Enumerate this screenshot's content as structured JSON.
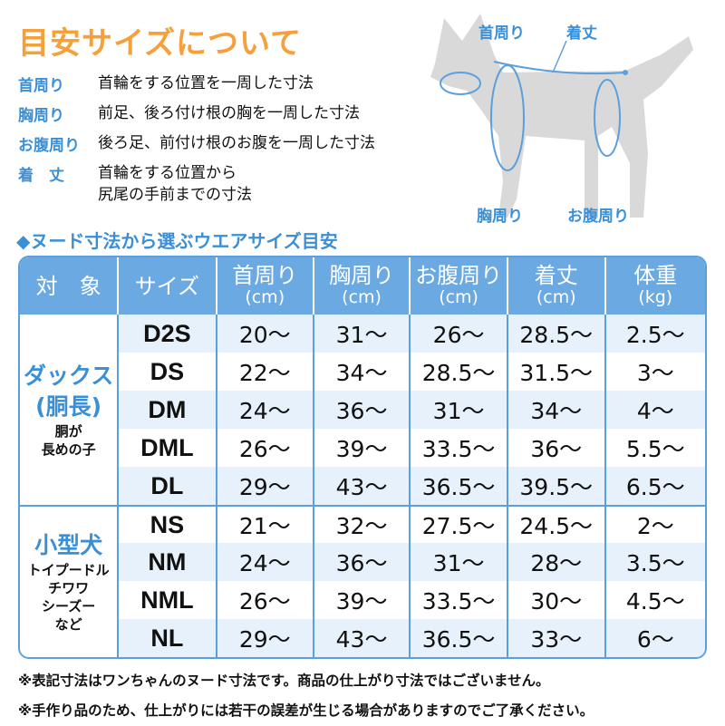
{
  "title": "目安サイズについて",
  "definitions": [
    {
      "term": "首周り",
      "desc": "首輪をする位置を一周した寸法"
    },
    {
      "term": "胸周り",
      "desc": "前足、後ろ付け根の胸を一周した寸法"
    },
    {
      "term": "お腹周り",
      "desc": "後ろ足、前付け根のお腹を一周した寸法"
    },
    {
      "term": "着　丈",
      "desc": "首輪をする位置から",
      "desc2": "尻尾の手前までの寸法"
    }
  ],
  "diagram": {
    "neck": "首周り",
    "length": "着丈",
    "chest": "胸周り",
    "belly": "お腹周り"
  },
  "subtitle": "◆ヌード寸法から選ぶウエアサイズ目安",
  "table": {
    "headers": [
      {
        "label": "対　象"
      },
      {
        "label": "サイズ"
      },
      {
        "label": "首周り",
        "unit": "(cm)"
      },
      {
        "label": "胸周り",
        "unit": "(cm)"
      },
      {
        "label": "お腹周り",
        "unit": "(cm)"
      },
      {
        "label": "着丈",
        "unit": "(cm)"
      },
      {
        "label": "体重",
        "unit": "(kg)"
      }
    ],
    "groups": [
      {
        "name": "ダックス",
        "name2": "(胴長)",
        "note1": "胴が",
        "note2": "長めの子",
        "rows": [
          [
            "D2S",
            "20〜",
            "31〜",
            "26〜",
            "28.5〜",
            "2.5〜"
          ],
          [
            "DS",
            "22〜",
            "34〜",
            "28.5〜",
            "31.5〜",
            "3〜"
          ],
          [
            "DM",
            "24〜",
            "36〜",
            "31〜",
            "34〜",
            "4〜"
          ],
          [
            "DML",
            "26〜",
            "39〜",
            "33.5〜",
            "36〜",
            "5.5〜"
          ],
          [
            "DL",
            "29〜",
            "43〜",
            "36.5〜",
            "39.5〜",
            "6.5〜"
          ]
        ]
      },
      {
        "name": "小型犬",
        "note1": "トイプードル",
        "note2": "チワワ",
        "note3": "シーズー",
        "note4": "など",
        "rows": [
          [
            "NS",
            "21〜",
            "32〜",
            "27.5〜",
            "24.5〜",
            "2〜"
          ],
          [
            "NM",
            "24〜",
            "36〜",
            "31〜",
            "28〜",
            "3.5〜"
          ],
          [
            "NML",
            "26〜",
            "39〜",
            "33.5〜",
            "30〜",
            "4.5〜"
          ],
          [
            "NL",
            "29〜",
            "43〜",
            "36.5〜",
            "33〜",
            "6〜"
          ]
        ]
      }
    ]
  },
  "notes": [
    "※表記寸法はワンちゃんのヌード寸法です。商品の仕上がり寸法ではございません。",
    "※手作り品のため、仕上がりには若干の誤差が生じる場合がありますのでご了承ください。"
  ],
  "colors": {
    "accent": "#3a8fd6",
    "title": "#f5a03a",
    "header": "#6aa9e2",
    "row_alt": "#e6f1fb"
  }
}
